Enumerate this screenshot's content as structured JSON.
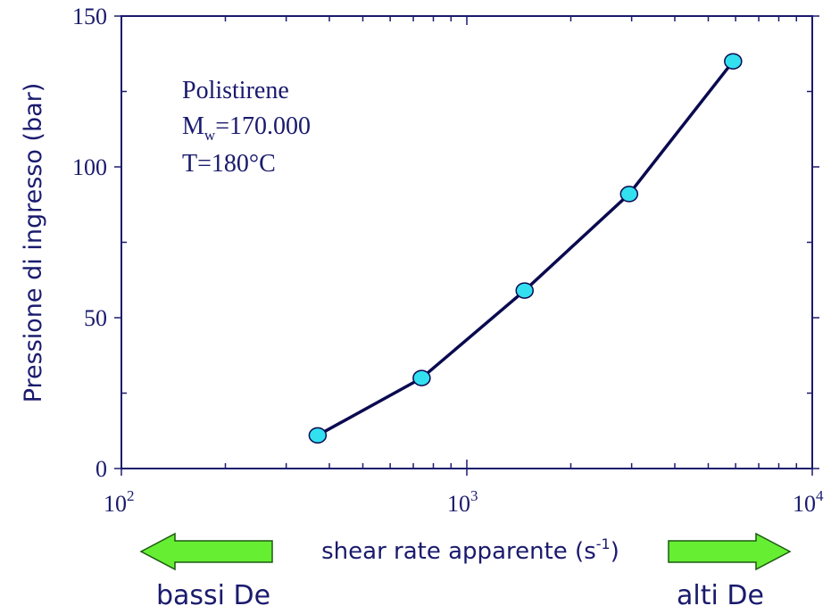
{
  "chart_data": {
    "type": "line",
    "x_scale": "log",
    "xlim": [
      100,
      10000
    ],
    "ylim": [
      0,
      150
    ],
    "x_ticks": [
      {
        "base": "10",
        "exp": "2"
      },
      {
        "base": "10",
        "exp": "3"
      },
      {
        "base": "10",
        "exp": "4"
      }
    ],
    "y_ticks": [
      "0",
      "50",
      "100",
      "150"
    ],
    "y_tick_values": [
      0,
      50,
      100,
      150
    ],
    "ylabel": "Pressione di ingresso (bar)",
    "xlabel": {
      "prefix": "shear rate apparente (s",
      "sup": "-1",
      "suffix": ")"
    },
    "annotation": {
      "line1": "Polistirene",
      "line2_main": "M",
      "line2_sub": "w",
      "line2_rest": "=170.000",
      "line3": "T=180°C"
    },
    "series": [
      {
        "x": [
          370,
          740,
          1470,
          2950,
          5900
        ],
        "y": [
          11,
          30,
          59,
          91,
          135
        ]
      }
    ],
    "grid": false,
    "left_arrow_label": "bassi De",
    "right_arrow_label": "alti De",
    "colors": {
      "axis": "#1a1a6e",
      "line": "#0a0a50",
      "marker_fill": "#33e0f0",
      "marker_stroke": "#0a0a50",
      "text": "#1a1a6e",
      "arrow_fill": "#66ee33",
      "arrow_stroke": "#1a5a10"
    }
  }
}
